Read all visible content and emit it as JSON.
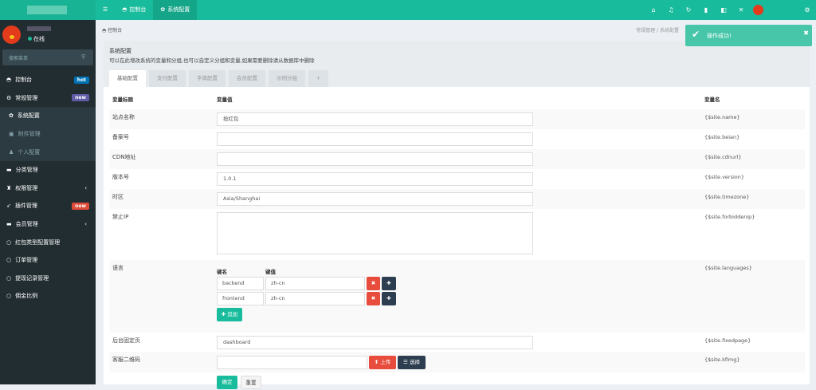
{
  "header": {
    "nav": [
      {
        "icon": "menu-icon",
        "label": ""
      },
      {
        "icon": "dashboard-icon",
        "label": "控制台"
      },
      {
        "icon": "gear-icon",
        "label": "系统配置"
      }
    ],
    "icons": [
      "home-icon",
      "bell-icon",
      "refresh-icon",
      "trash-icon",
      "translate-icon",
      "fullscreen-icon"
    ],
    "settings_icon": "cogs-icon"
  },
  "sidebar": {
    "status": "在线",
    "search_placeholder": "搜索菜单",
    "items": [
      {
        "label": "控制台",
        "icon": "dashboard-icon",
        "badge": "hot",
        "badge_color": "#0073b7",
        "type": "top"
      },
      {
        "label": "常规管理",
        "icon": "cogs-icon",
        "badge": "new",
        "badge_color": "#605ca8",
        "type": "top"
      },
      {
        "label": "系统配置",
        "icon": "gear-icon",
        "type": "sub",
        "active": true
      },
      {
        "label": "附件管理",
        "icon": "image-icon",
        "type": "sub"
      },
      {
        "label": "个人配置",
        "icon": "user-icon",
        "type": "sub"
      },
      {
        "label": "分类管理",
        "icon": "list-icon",
        "type": "top"
      },
      {
        "label": "权限管理",
        "icon": "group-icon",
        "type": "top",
        "chevron": true
      },
      {
        "label": "插件管理",
        "icon": "rocket-icon",
        "badge": "new",
        "badge_color": "#dd4b39",
        "type": "top"
      },
      {
        "label": "会员管理",
        "icon": "list-icon",
        "type": "top",
        "chevron": true
      },
      {
        "label": "红包类型配置管理",
        "icon": "circle-icon",
        "type": "top"
      },
      {
        "label": "订单管理",
        "icon": "circle-icon",
        "type": "top"
      },
      {
        "label": "提现记录管理",
        "icon": "circle-icon",
        "type": "top"
      },
      {
        "label": "佣金比例",
        "icon": "circle-icon",
        "type": "top"
      }
    ]
  },
  "breadcrumb": "控制台",
  "toast": {
    "message": "操作成功!",
    "behind_text": "常规管理 / 系统配置"
  },
  "panel": {
    "title": "系统配置",
    "description": "可以在此增改系统的变量和分组,也可以自定义分组和变量,如果需要删除请从数据库中删除",
    "tabs": [
      "基础配置",
      "支付配置",
      "字典配置",
      "会员配置",
      "示例分组",
      "+"
    ],
    "columns": [
      "变量标题",
      "变量值",
      "变量名"
    ],
    "rows": [
      {
        "title": "站点名称",
        "value": "抢红包",
        "var": "{$site.name}"
      },
      {
        "title": "备案号",
        "value": "",
        "var": "{$site.beian}"
      },
      {
        "title": "CDN地址",
        "value": "",
        "var": "{$site.cdnurl}"
      },
      {
        "title": "版本号",
        "value": "1.0.1",
        "var": "{$site.version}"
      },
      {
        "title": "时区",
        "value": "Asia/Shanghai",
        "var": "{$site.timezone}"
      },
      {
        "title": "禁止IP",
        "value": "",
        "var": "{$site.forbiddenip}"
      },
      {
        "title": "语言",
        "var": "{$site.languages}",
        "key_header": "键名",
        "val_header": "键值",
        "pairs": [
          {
            "key": "backend",
            "val": "zh-cn"
          },
          {
            "key": "frontend",
            "val": "zh-cn"
          }
        ],
        "add_label": "✚ 追加"
      },
      {
        "title": "后台固定页",
        "value": "dashboard",
        "var": "{$site.fixedpage}"
      },
      {
        "title": "客服二维码",
        "value": "",
        "var": "{$site.kfimg}",
        "upload_label": "上传",
        "select_label": "选择"
      }
    ],
    "submit_label": "确定",
    "reset_label": "重置"
  }
}
